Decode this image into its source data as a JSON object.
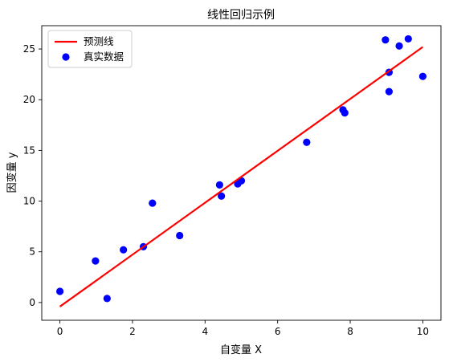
{
  "chart_data": {
    "type": "scatter",
    "title": "线性回归示例",
    "xlabel": "自变量 X",
    "ylabel": "因变量 y",
    "xlim": [
      -0.5,
      10.5
    ],
    "ylim": [
      -1.75,
      27.3
    ],
    "xticks": [
      0,
      2,
      4,
      6,
      8,
      10
    ],
    "yticks": [
      0,
      5,
      10,
      15,
      20,
      25
    ],
    "grid": false,
    "legend_position": "top-left",
    "series": [
      {
        "name": "预测线",
        "kind": "line",
        "color": "#ff0000",
        "x": [
          0,
          10
        ],
        "y": [
          -0.4,
          25.2
        ]
      },
      {
        "name": "真实数据",
        "kind": "scatter",
        "color": "#0000ff",
        "points": [
          {
            "x": 0.0,
            "y": 1.1
          },
          {
            "x": 0.98,
            "y": 4.1
          },
          {
            "x": 1.3,
            "y": 0.4
          },
          {
            "x": 1.75,
            "y": 5.2
          },
          {
            "x": 2.3,
            "y": 5.5
          },
          {
            "x": 2.55,
            "y": 9.8
          },
          {
            "x": 3.3,
            "y": 6.6
          },
          {
            "x": 4.4,
            "y": 11.6
          },
          {
            "x": 4.45,
            "y": 10.5
          },
          {
            "x": 4.9,
            "y": 11.7
          },
          {
            "x": 5.0,
            "y": 12.0
          },
          {
            "x": 6.8,
            "y": 15.8
          },
          {
            "x": 7.8,
            "y": 19.0
          },
          {
            "x": 7.85,
            "y": 18.7
          },
          {
            "x": 8.97,
            "y": 25.9
          },
          {
            "x": 9.07,
            "y": 22.7
          },
          {
            "x": 9.07,
            "y": 20.8
          },
          {
            "x": 9.35,
            "y": 25.3
          },
          {
            "x": 9.6,
            "y": 26.0
          },
          {
            "x": 10.0,
            "y": 22.3
          }
        ]
      }
    ]
  }
}
